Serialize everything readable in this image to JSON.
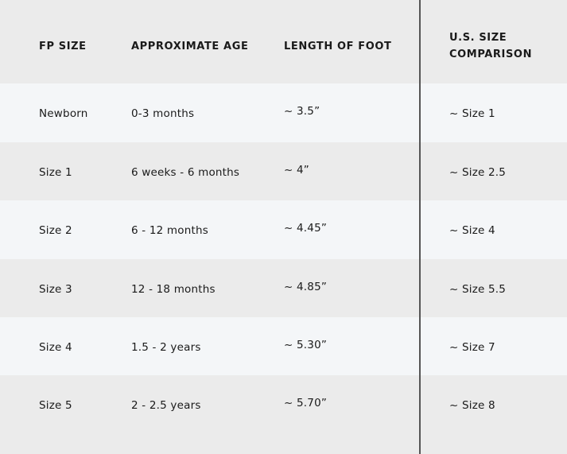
{
  "headers": [
    "FP SIZE",
    "APPROXIMATE AGE",
    "LENGTH OF FOOT",
    "U.S. SIZE",
    "COMPARISON"
  ],
  "rows": [
    [
      "Newborn",
      "0-3 months",
      "~ 3.5”",
      "~ Size 1"
    ],
    [
      "Size 1",
      "6 weeks - 6 months",
      "~ 4”",
      "~ Size 2.5"
    ],
    [
      "Size 2",
      "6 - 12 months",
      "~ 4.45”",
      "~ Size 4"
    ],
    [
      "Size 3",
      "12 - 18 months",
      "~ 4.85”",
      "~ Size 5.5"
    ],
    [
      "Size 4",
      "1.5 - 2 years",
      "~ 5.30”",
      "~ Size 7"
    ],
    [
      "Size 5",
      "2 - 2.5 years",
      "~ 5.70”",
      "~ Size 8"
    ]
  ],
  "colors": {
    "header_bg": "#ebebeb",
    "light_row": "#f4f6f8",
    "grey_row": "#ebebeb",
    "divider": "#555555"
  }
}
